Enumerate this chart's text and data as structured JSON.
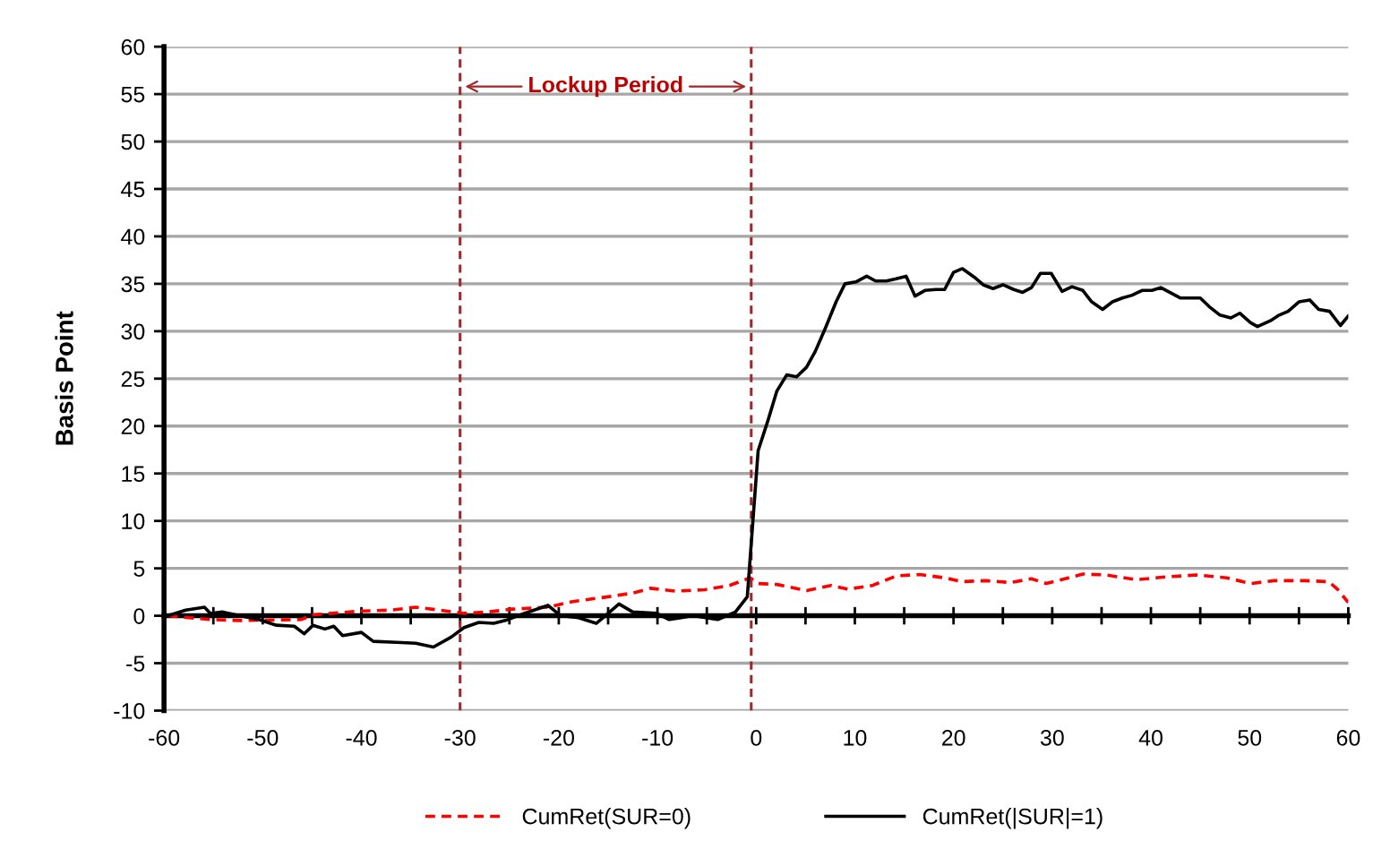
{
  "chart_data": {
    "type": "line",
    "ylabel": "Basis Point",
    "xlim": [
      -60,
      60
    ],
    "ylim": [
      -10,
      60
    ],
    "xticks": [
      -60,
      {
        "value": -55,
        "label": null
      },
      -50,
      {
        "value": -45,
        "label": null
      },
      -40,
      {
        "value": -35,
        "label": null
      },
      -30,
      {
        "value": -25,
        "label": null
      },
      -20,
      {
        "value": -15,
        "label": null
      },
      -10,
      {
        "value": -5,
        "label": null
      },
      0,
      {
        "value": 5,
        "label": null
      },
      10,
      {
        "value": 15,
        "label": null
      },
      20,
      {
        "value": 25,
        "label": null
      },
      30,
      {
        "value": 35,
        "label": null
      },
      40,
      {
        "value": 45,
        "label": null
      },
      50,
      {
        "value": 55,
        "label": null
      },
      60
    ],
    "yticks": [
      -10,
      -5,
      0,
      5,
      10,
      15,
      20,
      25,
      30,
      35,
      40,
      45,
      50,
      55,
      60
    ],
    "grid": "y",
    "legend": "bottom",
    "marker": "none",
    "ref_lines": [
      {
        "axis": "x",
        "value": -30,
        "color": "#a0282d",
        "line_style": "dashed"
      },
      {
        "axis": "x",
        "value": -0.5,
        "color": "#a0282d",
        "line_style": "dashed"
      }
    ],
    "annotations": [
      "Lockup Period"
    ],
    "series": [
      {
        "name": "CumRet(SUR=0)",
        "color": "#ff0000",
        "line_style": "dashed",
        "x": [
          -59.6,
          -55.3,
          -52.3,
          -46.1,
          -44.9,
          -40.0,
          -37.0,
          -34.5,
          -32.1,
          -29.6,
          -27.2,
          -24.7,
          -21.1,
          -18.6,
          -15.0,
          -12.5,
          -10.7,
          -8.2,
          -5.2,
          -2.7,
          -0.6,
          0.2,
          2.1,
          5.1,
          7.6,
          9.3,
          11.8,
          14.2,
          16.6,
          19.1,
          20.9,
          23.3,
          25.8,
          27.9,
          29.4,
          31.3,
          33.1,
          35.5,
          38.5,
          41.6,
          44.6,
          47.7,
          50.1,
          52.5,
          55.6,
          58.0,
          58.9,
          60
        ],
        "values": [
          0,
          -0.4,
          -0.5,
          -0.4,
          0.1,
          0.5,
          0.6,
          0.9,
          0.6,
          0.25,
          0.4,
          0.7,
          0.9,
          1.5,
          2.0,
          2.4,
          2.9,
          2.6,
          2.75,
          3.2,
          4.0,
          3.4,
          3.3,
          2.65,
          3.2,
          2.8,
          3.2,
          4.2,
          4.35,
          4.0,
          3.6,
          3.7,
          3.5,
          3.9,
          3.4,
          3.9,
          4.4,
          4.3,
          3.8,
          4.1,
          4.3,
          4.0,
          3.4,
          3.7,
          3.7,
          3.6,
          2.8,
          1.4
        ]
      },
      {
        "name": "CumRet(|SUR|=1)",
        "color": "#000000",
        "line_style": "solid",
        "x": [
          -59.6,
          -57.8,
          -55.9,
          -55.3,
          -54.1,
          -52.3,
          -50.4,
          -48.6,
          -46.8,
          -45.8,
          -44.9,
          -43.7,
          -42.8,
          -41.9,
          -40.0,
          -38.8,
          -36.4,
          -34.5,
          -32.7,
          -30.9,
          -29.6,
          -28.1,
          -26.6,
          -25.4,
          -23.5,
          -21.1,
          -19.8,
          -18.0,
          -16.2,
          -15.0,
          -13.9,
          -12.5,
          -10.1,
          -8.8,
          -6.4,
          -3.9,
          -2.1,
          -0.9,
          0.2,
          1.2,
          2.1,
          3.1,
          4.1,
          5.1,
          6.0,
          7.0,
          8.1,
          9.0,
          10.1,
          11.2,
          12.1,
          13.2,
          14.1,
          15.2,
          16.1,
          17.1,
          18.2,
          19.1,
          20.0,
          20.9,
          22.1,
          23.0,
          24.0,
          25.0,
          26.1,
          27.0,
          27.9,
          28.8,
          29.9,
          31.0,
          32.0,
          33.1,
          34.0,
          35.1,
          36.1,
          37.1,
          38.1,
          39.1,
          40.1,
          41.0,
          41.9,
          43.0,
          44.1,
          45.0,
          45.9,
          47.0,
          48.1,
          49.0,
          50.1,
          50.8,
          52.1,
          53.0,
          53.9,
          55.0,
          56.1,
          57.0,
          58.1,
          59.2,
          60
        ],
        "values": [
          0,
          0.6,
          0.9,
          0.25,
          0.4,
          0,
          -0.4,
          -1,
          -1.1,
          -1.9,
          -1,
          -1.4,
          -1.1,
          -2.1,
          -1.75,
          -2.7,
          -2.8,
          -2.9,
          -3.3,
          -2.25,
          -1.25,
          -0.7,
          -0.8,
          -0.5,
          0.25,
          1.1,
          0,
          -0.2,
          -0.8,
          0.25,
          1.25,
          0.4,
          0.25,
          -0.4,
          0,
          -0.4,
          0.4,
          2.0,
          17.4,
          20.6,
          23.7,
          25.4,
          25.2,
          26.2,
          27.9,
          30.3,
          33.1,
          35.0,
          35.2,
          35.8,
          35.3,
          35.3,
          35.5,
          35.8,
          33.7,
          34.3,
          34.4,
          34.4,
          36.2,
          36.6,
          35.7,
          34.9,
          34.5,
          34.9,
          34.4,
          34.1,
          34.6,
          36.1,
          36.1,
          34.2,
          34.7,
          34.3,
          33.1,
          32.3,
          33.1,
          33.5,
          33.8,
          34.3,
          34.3,
          34.6,
          34.1,
          33.5,
          33.5,
          33.5,
          32.6,
          31.7,
          31.4,
          31.9,
          30.9,
          30.5,
          31.1,
          31.7,
          32.1,
          33.1,
          33.3,
          32.3,
          32.1,
          30.6,
          31.6
        ]
      }
    ]
  }
}
